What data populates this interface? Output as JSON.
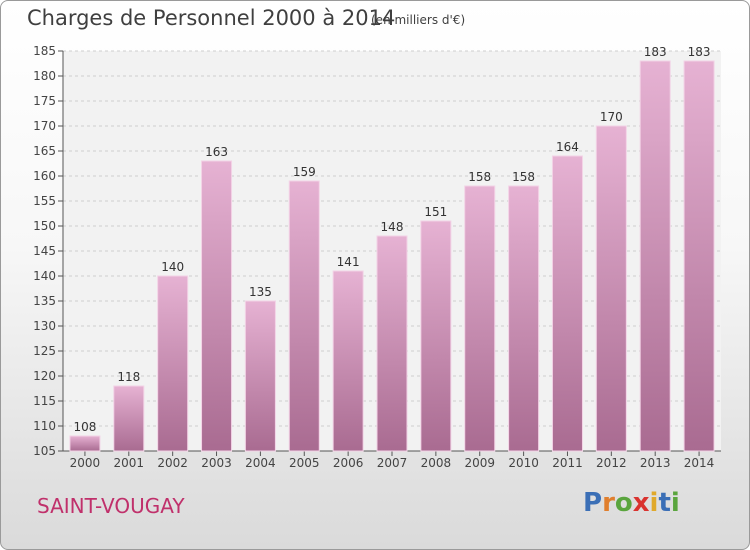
{
  "header": {
    "title": "Charges de Personnel 2000 à 2014",
    "subtitle": "(en milliers d'€)"
  },
  "footer": {
    "commune": "SAINT-VOUGAY",
    "logo": "Proxiti"
  },
  "colors": {
    "bar_top": "#e6b2d3",
    "bar_bottom": "#a96b91",
    "commune_text": "#c0306b",
    "logo_letters": [
      "#3b6fb6",
      "#e07f2e",
      "#5aa53e",
      "#d9332f",
      "#e0a92b",
      "#3b6fb6",
      "#5aa53e"
    ]
  },
  "chart_data": {
    "type": "bar",
    "title": "Charges de Personnel 2000 à 2014",
    "subtitle": "(en milliers d'€)",
    "categories": [
      "2000",
      "2001",
      "2002",
      "2003",
      "2004",
      "2005",
      "2006",
      "2007",
      "2008",
      "2009",
      "2010",
      "2011",
      "2012",
      "2013",
      "2014"
    ],
    "values": [
      108,
      118,
      140,
      163,
      135,
      159,
      141,
      148,
      151,
      158,
      158,
      164,
      170,
      183,
      183
    ],
    "ylim": [
      105,
      185
    ],
    "yticks": [
      105,
      110,
      115,
      120,
      125,
      130,
      135,
      140,
      145,
      150,
      155,
      160,
      165,
      170,
      175,
      180,
      185
    ],
    "grid": true,
    "data_labels": true
  }
}
